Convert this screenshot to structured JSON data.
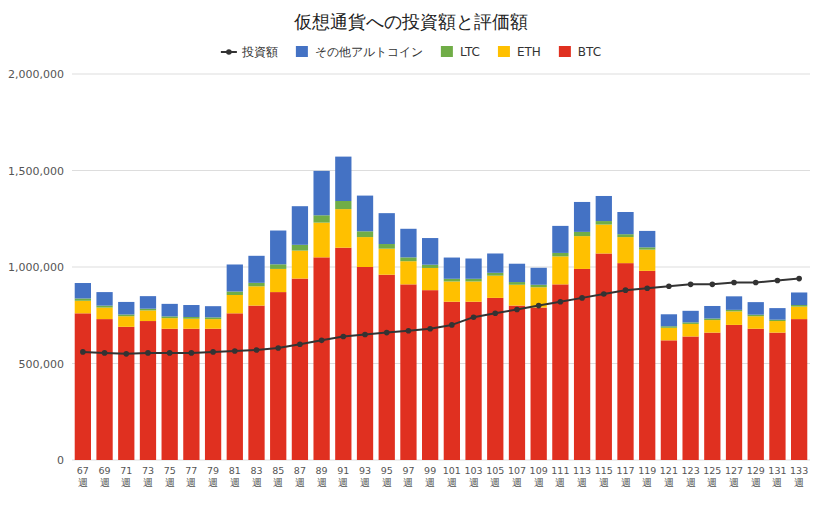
{
  "chart_data": {
    "type": "bar",
    "title": "仮想通貨への投資額と評価額",
    "stacked": true,
    "grid": true,
    "legend": "top",
    "categories": [
      "67\n週",
      "69\n週",
      "71\n週",
      "73\n週",
      "75\n週",
      "77\n週",
      "79\n週",
      "81\n週",
      "83\n週",
      "85\n週",
      "87\n週",
      "89\n週",
      "91\n週",
      "93\n週",
      "95\n週",
      "97\n週",
      "99\n週",
      "101\n週",
      "103\n週",
      "105\n週",
      "107\n週",
      "109\n週",
      "111\n週",
      "113\n週",
      "115\n週",
      "117\n週",
      "119\n週",
      "121\n週",
      "123\n週",
      "125\n週",
      "127\n週",
      "129\n週",
      "131\n週",
      "133\n週"
    ],
    "ylim": [
      0,
      2000000
    ],
    "yticks": [
      0,
      {
        "value": 500000,
        "label": "500,000"
      },
      {
        "value": 1000000,
        "label": "1,000,000"
      },
      {
        "value": 1500000,
        "label": "1,500,000"
      },
      {
        "value": 2000000,
        "label": "2,000,000"
      }
    ],
    "series": [
      {
        "name": "BTC",
        "color": "#E03020",
        "values": [
          760000,
          730000,
          690000,
          720000,
          680000,
          680000,
          680000,
          760000,
          800000,
          870000,
          940000,
          1050000,
          1100000,
          1000000,
          960000,
          910000,
          880000,
          820000,
          820000,
          840000,
          800000,
          790000,
          910000,
          990000,
          1070000,
          1020000,
          980000,
          620000,
          640000,
          660000,
          700000,
          680000,
          660000,
          730000
        ]
      },
      {
        "name": "ETH",
        "color": "#FFC000",
        "values": [
          65000,
          60000,
          55000,
          55000,
          55000,
          52000,
          50000,
          95000,
          100000,
          120000,
          145000,
          180000,
          200000,
          155000,
          135000,
          120000,
          115000,
          105000,
          105000,
          115000,
          108000,
          105000,
          145000,
          170000,
          150000,
          135000,
          110000,
          65000,
          65000,
          65000,
          70000,
          65000,
          60000,
          65000
        ]
      },
      {
        "name": "LTC",
        "color": "#70AD47",
        "values": [
          12000,
          10000,
          9000,
          9000,
          9000,
          9000,
          9000,
          18000,
          18000,
          24000,
          30000,
          38000,
          42000,
          30000,
          24000,
          20000,
          17000,
          14000,
          14000,
          15000,
          14000,
          13000,
          18000,
          22000,
          18000,
          15000,
          12000,
          8000,
          8000,
          8000,
          8000,
          8000,
          7000,
          8000
        ]
      },
      {
        "name": "その他アルトコイン",
        "color": "#4472C4",
        "values": [
          80000,
          70000,
          65000,
          65000,
          65000,
          62000,
          58000,
          140000,
          140000,
          175000,
          200000,
          230000,
          230000,
          185000,
          160000,
          148000,
          138000,
          110000,
          105000,
          100000,
          95000,
          88000,
          140000,
          155000,
          130000,
          115000,
          85000,
          62000,
          60000,
          65000,
          70000,
          65000,
          60000,
          65000
        ]
      },
      {
        "name": "投資額",
        "type": "line",
        "marker": "circle",
        "color": "#333333",
        "values": [
          560000,
          555000,
          550000,
          555000,
          555000,
          555000,
          560000,
          565000,
          570000,
          580000,
          600000,
          620000,
          640000,
          650000,
          660000,
          670000,
          680000,
          700000,
          740000,
          760000,
          780000,
          800000,
          820000,
          840000,
          860000,
          880000,
          890000,
          900000,
          910000,
          910000,
          920000,
          920000,
          930000,
          940000
        ]
      }
    ]
  }
}
